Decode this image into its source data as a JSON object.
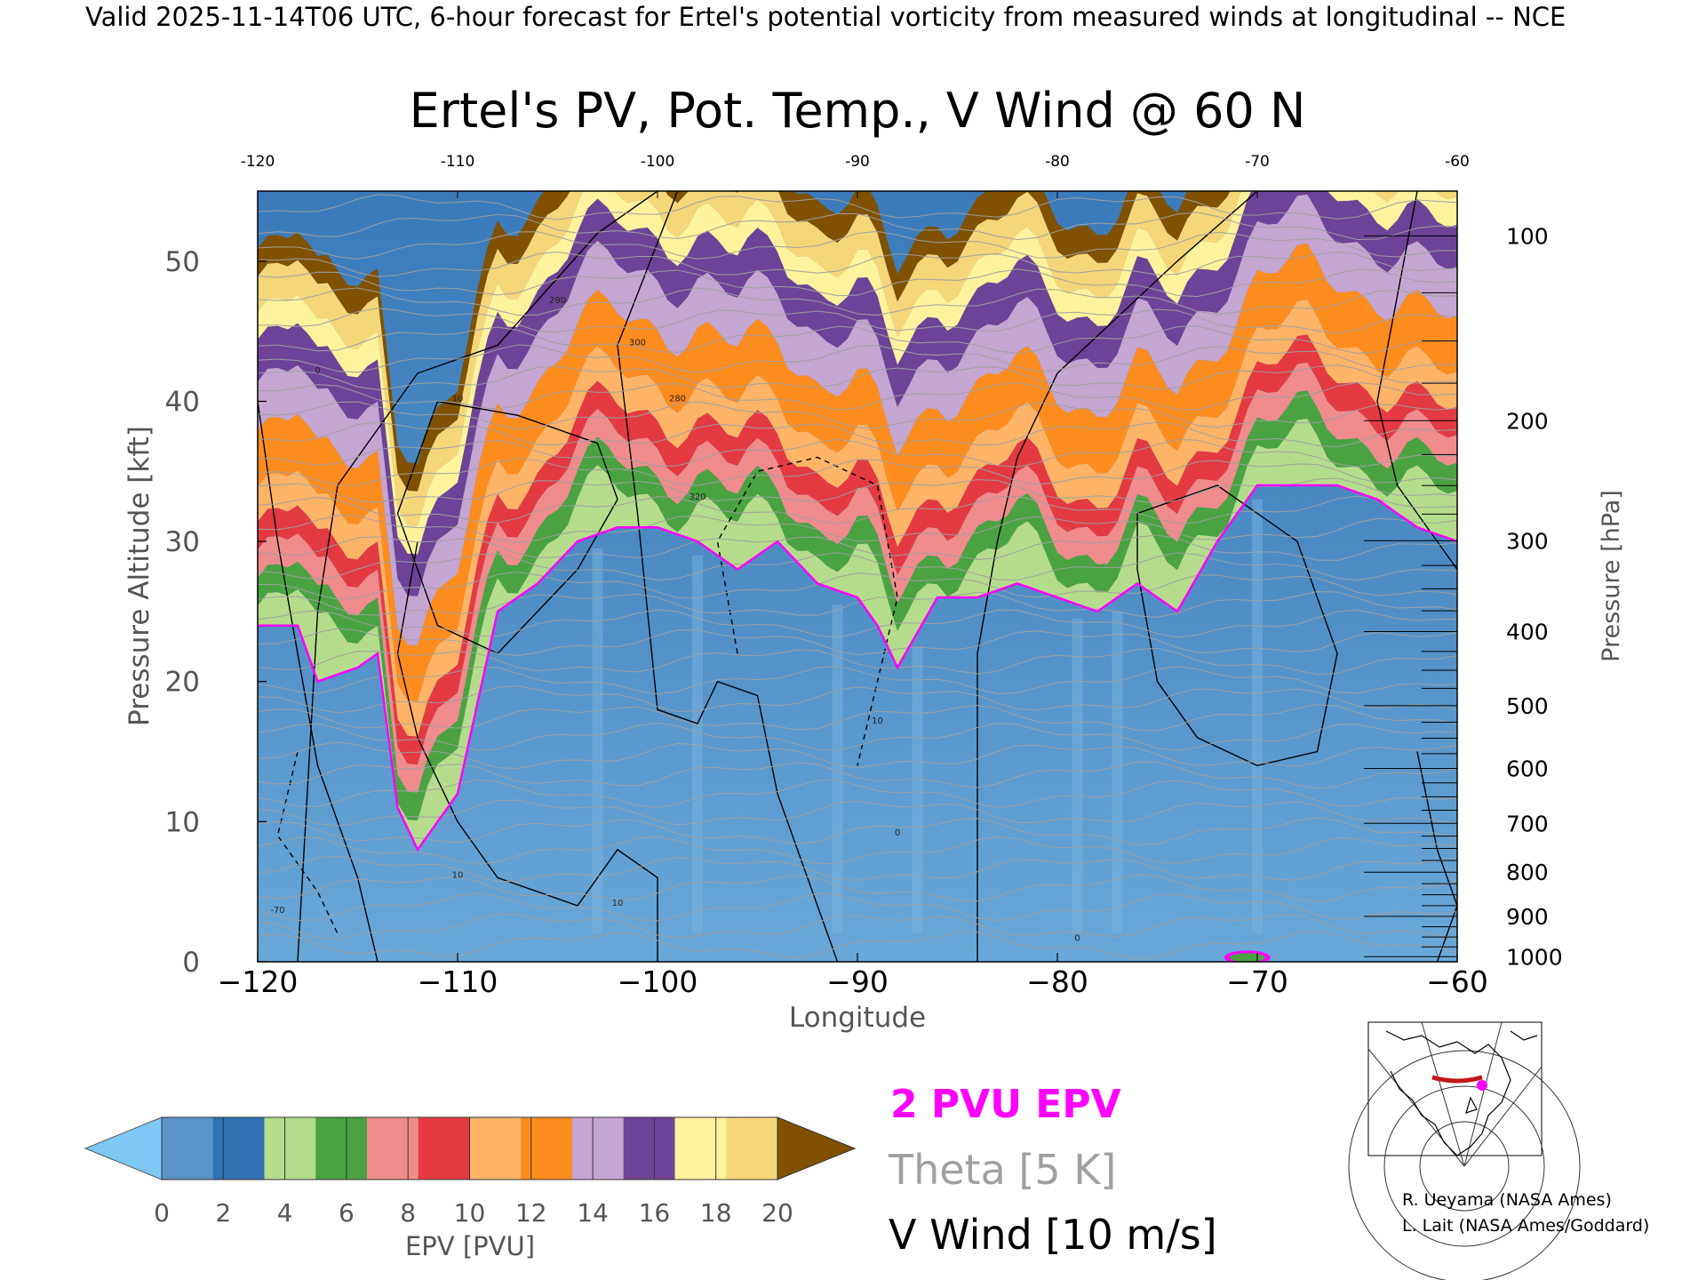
{
  "header": "Valid 2025-11-14T06 UTC, 6-hour forecast for Ertel's potential vorticity from measured winds at longitudinal -- NCE",
  "chart_data": {
    "type": "heatmap",
    "title": "Ertel's PV, Pot. Temp., V Wind @ 60 N",
    "xlabel": "Longitude",
    "ylabel": "Pressure Altitude [kft]",
    "y2label": "Pressure [hPa]",
    "xlim": [
      -120,
      -60
    ],
    "ylim": [
      0,
      55
    ],
    "x_ticks": [
      -120,
      -110,
      -100,
      -90,
      -80,
      -70,
      -60
    ],
    "x_tick_labels": [
      "−120",
      "−110",
      "−100",
      "−90",
      "−80",
      "−70",
      "−60"
    ],
    "top_tick_labels": [
      "-120",
      "-110",
      "-100",
      "-90",
      "-80",
      "-70",
      "-60"
    ],
    "y_ticks": [
      0,
      10,
      20,
      30,
      40,
      50
    ],
    "y_tick_labels": [
      "0",
      "10",
      "20",
      "30",
      "40",
      "50"
    ],
    "pressure_ticks": [
      1000,
      900,
      800,
      700,
      600,
      500,
      400,
      300,
      200,
      100
    ],
    "pressure_tick_labels": [
      "1000",
      "900",
      "800",
      "700",
      "600",
      "500",
      "400",
      "300",
      "200",
      "100"
    ],
    "colorbar": {
      "label": "EPV [PVU]",
      "ticks": [
        0,
        2,
        4,
        6,
        8,
        10,
        12,
        14,
        16,
        18,
        20
      ],
      "tick_labels": [
        "0",
        "2",
        "4",
        "6",
        "8",
        "10",
        "12",
        "14",
        "16",
        "18",
        "20"
      ],
      "colors": [
        "#5a93c6",
        "#2f72b4",
        "#b5dc8c",
        "#4aa242",
        "#f08c8c",
        "#e43a42",
        "#ffb468",
        "#ff8c1e",
        "#c4a6d2",
        "#6e4296",
        "#fff29c",
        "#f5d77a"
      ],
      "under_color": "#80c8f4",
      "over_color": "#7f5100"
    },
    "tropopause_x": [
      -120,
      -118,
      -117,
      -115,
      -114,
      -113,
      -112,
      -111,
      -110,
      -108,
      -106,
      -104,
      -102,
      -100,
      -98,
      -96,
      -94,
      -92,
      -90,
      -89,
      -88,
      -86,
      -84,
      -82,
      -80,
      -78,
      -76,
      -74,
      -72,
      -70,
      -68,
      -66,
      -64,
      -62,
      -60
    ],
    "tropopause_alt_kft": [
      24,
      24,
      20,
      21,
      22,
      11,
      8,
      10,
      12,
      25,
      27,
      30,
      31,
      31,
      30,
      28,
      30,
      27,
      26,
      24,
      21,
      26,
      26,
      27,
      26,
      25,
      27,
      25,
      30,
      34,
      34,
      34,
      33,
      31,
      30
    ],
    "legend": [
      {
        "name": "2 PVU EPV",
        "color": "#ff00ff"
      },
      {
        "name": "Theta [5 K]",
        "color": "#a0a0a0"
      },
      {
        "name": "V Wind [10 m/s]",
        "color": "#000000"
      }
    ],
    "contour_labels": [
      "0",
      "10",
      "-10",
      "-70",
      "20",
      "280",
      "290",
      "300",
      "320"
    ],
    "grid": false
  },
  "credits": [
    "R. Ueyama (NASA Ames)",
    "L. Lait (NASA Ames/Goddard)"
  ],
  "colors": {
    "text": "#000000",
    "theta": "#a0a0a0",
    "pvu": "#ff00ff"
  },
  "inset_map": {
    "highlight_color": "#c01818",
    "marker_color": "#ff00ff"
  }
}
